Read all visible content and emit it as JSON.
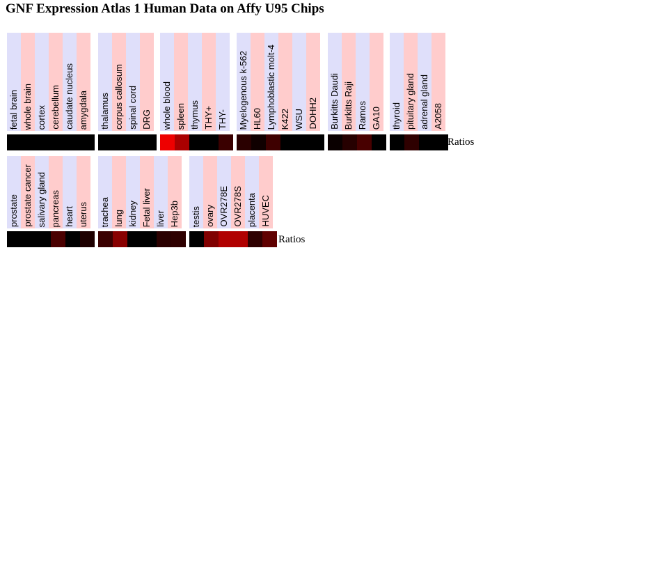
{
  "title": "GNF Expression Atlas 1 Human Data on Affy U95 Chips",
  "ratio_label": "Ratios",
  "rows": [
    {
      "groups": [
        {
          "samples": [
            {
              "name": "fetal brain",
              "color": "#000000"
            },
            {
              "name": "whole brain",
              "color": "#000000"
            },
            {
              "name": "cortex",
              "color": "#000000"
            },
            {
              "name": "cerebellum",
              "color": "#000000"
            },
            {
              "name": "caudate nucleus",
              "color": "#000000"
            },
            {
              "name": "amygdala",
              "color": "#000000"
            }
          ]
        },
        {
          "samples": [
            {
              "name": "thalamus",
              "color": "#000000"
            },
            {
              "name": "corpus callosum",
              "color": "#000000"
            },
            {
              "name": "spinal cord",
              "color": "#000000"
            },
            {
              "name": "DRG",
              "color": "#000000"
            }
          ]
        },
        {
          "samples": [
            {
              "name": "whole blood",
              "color": "#ee0000"
            },
            {
              "name": "spleen",
              "color": "#aa0000"
            },
            {
              "name": "thymus",
              "color": "#000000"
            },
            {
              "name": "THY+",
              "color": "#000000"
            },
            {
              "name": "THY-",
              "color": "#3a0000"
            }
          ]
        },
        {
          "samples": [
            {
              "name": "Myelogenous k-562",
              "color": "#2a0000"
            },
            {
              "name": "HL60",
              "color": "#100000"
            },
            {
              "name": "Lymphoblastic molt-4",
              "color": "#3e0000"
            },
            {
              "name": "K422",
              "color": "#000000"
            },
            {
              "name": "WSU",
              "color": "#000000"
            },
            {
              "name": "DOHH2",
              "color": "#000000"
            }
          ]
        },
        {
          "samples": [
            {
              "name": "Burkitts Daudi",
              "color": "#0a0000"
            },
            {
              "name": "Burkitts Raji",
              "color": "#260000"
            },
            {
              "name": "Ramos",
              "color": "#480000"
            },
            {
              "name": "GA10",
              "color": "#000000"
            }
          ]
        },
        {
          "samples": [
            {
              "name": "thyroid",
              "color": "#000000"
            },
            {
              "name": "pituitary gland",
              "color": "#2e0000"
            },
            {
              "name": "adrenal gland",
              "color": "#000000"
            },
            {
              "name": "A2058",
              "color": "#000000"
            }
          ]
        }
      ]
    },
    {
      "groups": [
        {
          "samples": [
            {
              "name": "prostate",
              "color": "#000000"
            },
            {
              "name": "prostate cancer",
              "color": "#000000"
            },
            {
              "name": "salivary gland",
              "color": "#000000"
            },
            {
              "name": "pancreas",
              "color": "#4a0000"
            },
            {
              "name": "heart",
              "color": "#000000"
            },
            {
              "name": "uterus",
              "color": "#1e0000"
            }
          ]
        },
        {
          "samples": [
            {
              "name": "trachea",
              "color": "#3a0000"
            },
            {
              "name": "lung",
              "color": "#880000"
            },
            {
              "name": "kidney",
              "color": "#000000"
            },
            {
              "name": "Fetal liver",
              "color": "#000000"
            },
            {
              "name": "liver",
              "color": "#2a0000"
            },
            {
              "name": "Hep3b",
              "color": "#2e0000"
            }
          ]
        },
        {
          "samples": [
            {
              "name": "testis",
              "color": "#000000"
            },
            {
              "name": "ovary",
              "color": "#800000"
            },
            {
              "name": "OVR278E",
              "color": "#b00000"
            },
            {
              "name": "OVR278S",
              "color": "#b00000"
            },
            {
              "name": "placenta",
              "color": "#2e0000"
            },
            {
              "name": "HUVEC",
              "color": "#600000"
            }
          ]
        }
      ]
    }
  ]
}
